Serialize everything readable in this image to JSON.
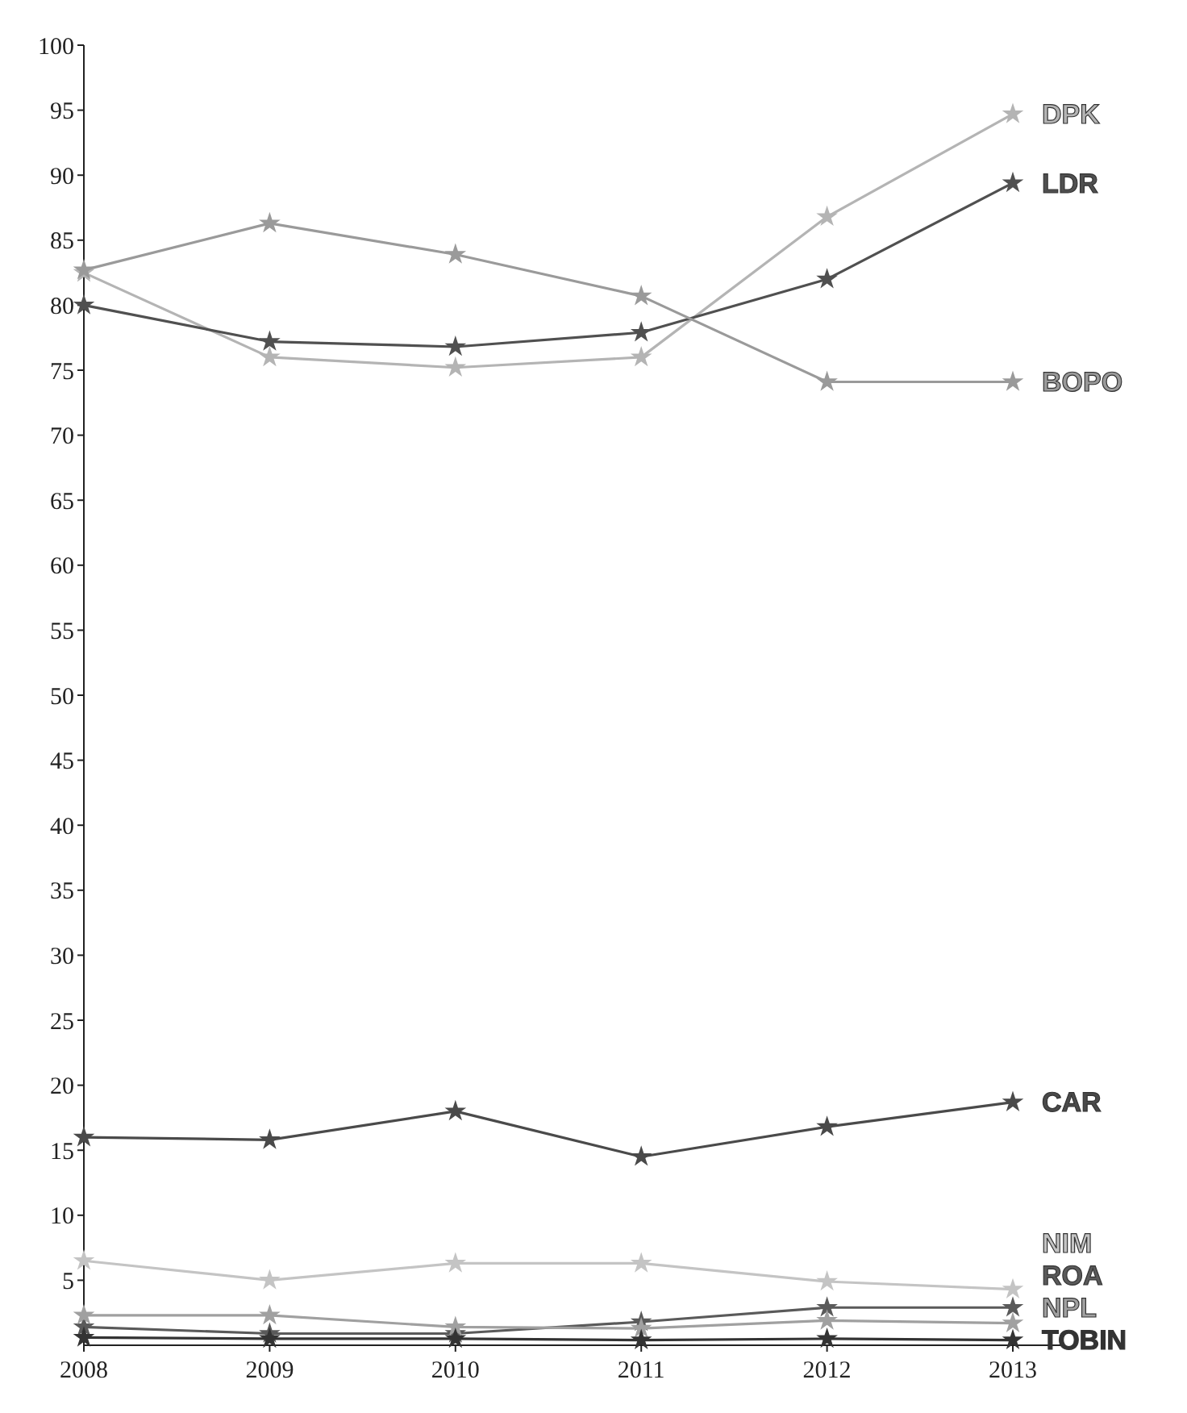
{
  "chart_data": {
    "type": "line",
    "categories": [
      "2008",
      "2009",
      "2010",
      "2011",
      "2012",
      "2013"
    ],
    "ylim": [
      0,
      100
    ],
    "yticks": [
      5,
      10,
      15,
      20,
      25,
      30,
      35,
      40,
      45,
      50,
      55,
      60,
      65,
      70,
      75,
      80,
      85,
      90,
      95,
      100
    ],
    "grid": false,
    "legend": false,
    "marker": "star",
    "line_style": "solid",
    "series": [
      {
        "name": "DPK",
        "color": "#b4b4b4",
        "values": [
          82.5,
          76,
          75.2,
          76,
          86.8,
          94.7
        ]
      },
      {
        "name": "LDR",
        "color": "#505050",
        "values": [
          80,
          77.2,
          76.8,
          77.9,
          82,
          89.4
        ]
      },
      {
        "name": "BOPO",
        "color": "#9a9a9a",
        "values": [
          82.7,
          86.3,
          83.9,
          80.7,
          74.1,
          74.1
        ]
      },
      {
        "name": "CAR",
        "color": "#4a4a4a",
        "values": [
          16,
          15.8,
          18,
          14.5,
          16.8,
          18.7
        ]
      },
      {
        "name": "NIM",
        "color": "#c4c4c4",
        "values": [
          6.5,
          5,
          6.3,
          6.3,
          4.9,
          4.3
        ]
      },
      {
        "name": "ROA",
        "color": "#5a5a5a",
        "values": [
          1.4,
          0.9,
          0.9,
          1.8,
          2.9,
          2.9
        ]
      },
      {
        "name": "NPL",
        "color": "#a0a0a0",
        "values": [
          2.3,
          2.3,
          1.4,
          1.3,
          1.9,
          1.7
        ]
      },
      {
        "name": "TOBIN",
        "color": "#333333",
        "values": [
          0.6,
          0.5,
          0.5,
          0.4,
          0.5,
          0.4
        ]
      }
    ]
  }
}
